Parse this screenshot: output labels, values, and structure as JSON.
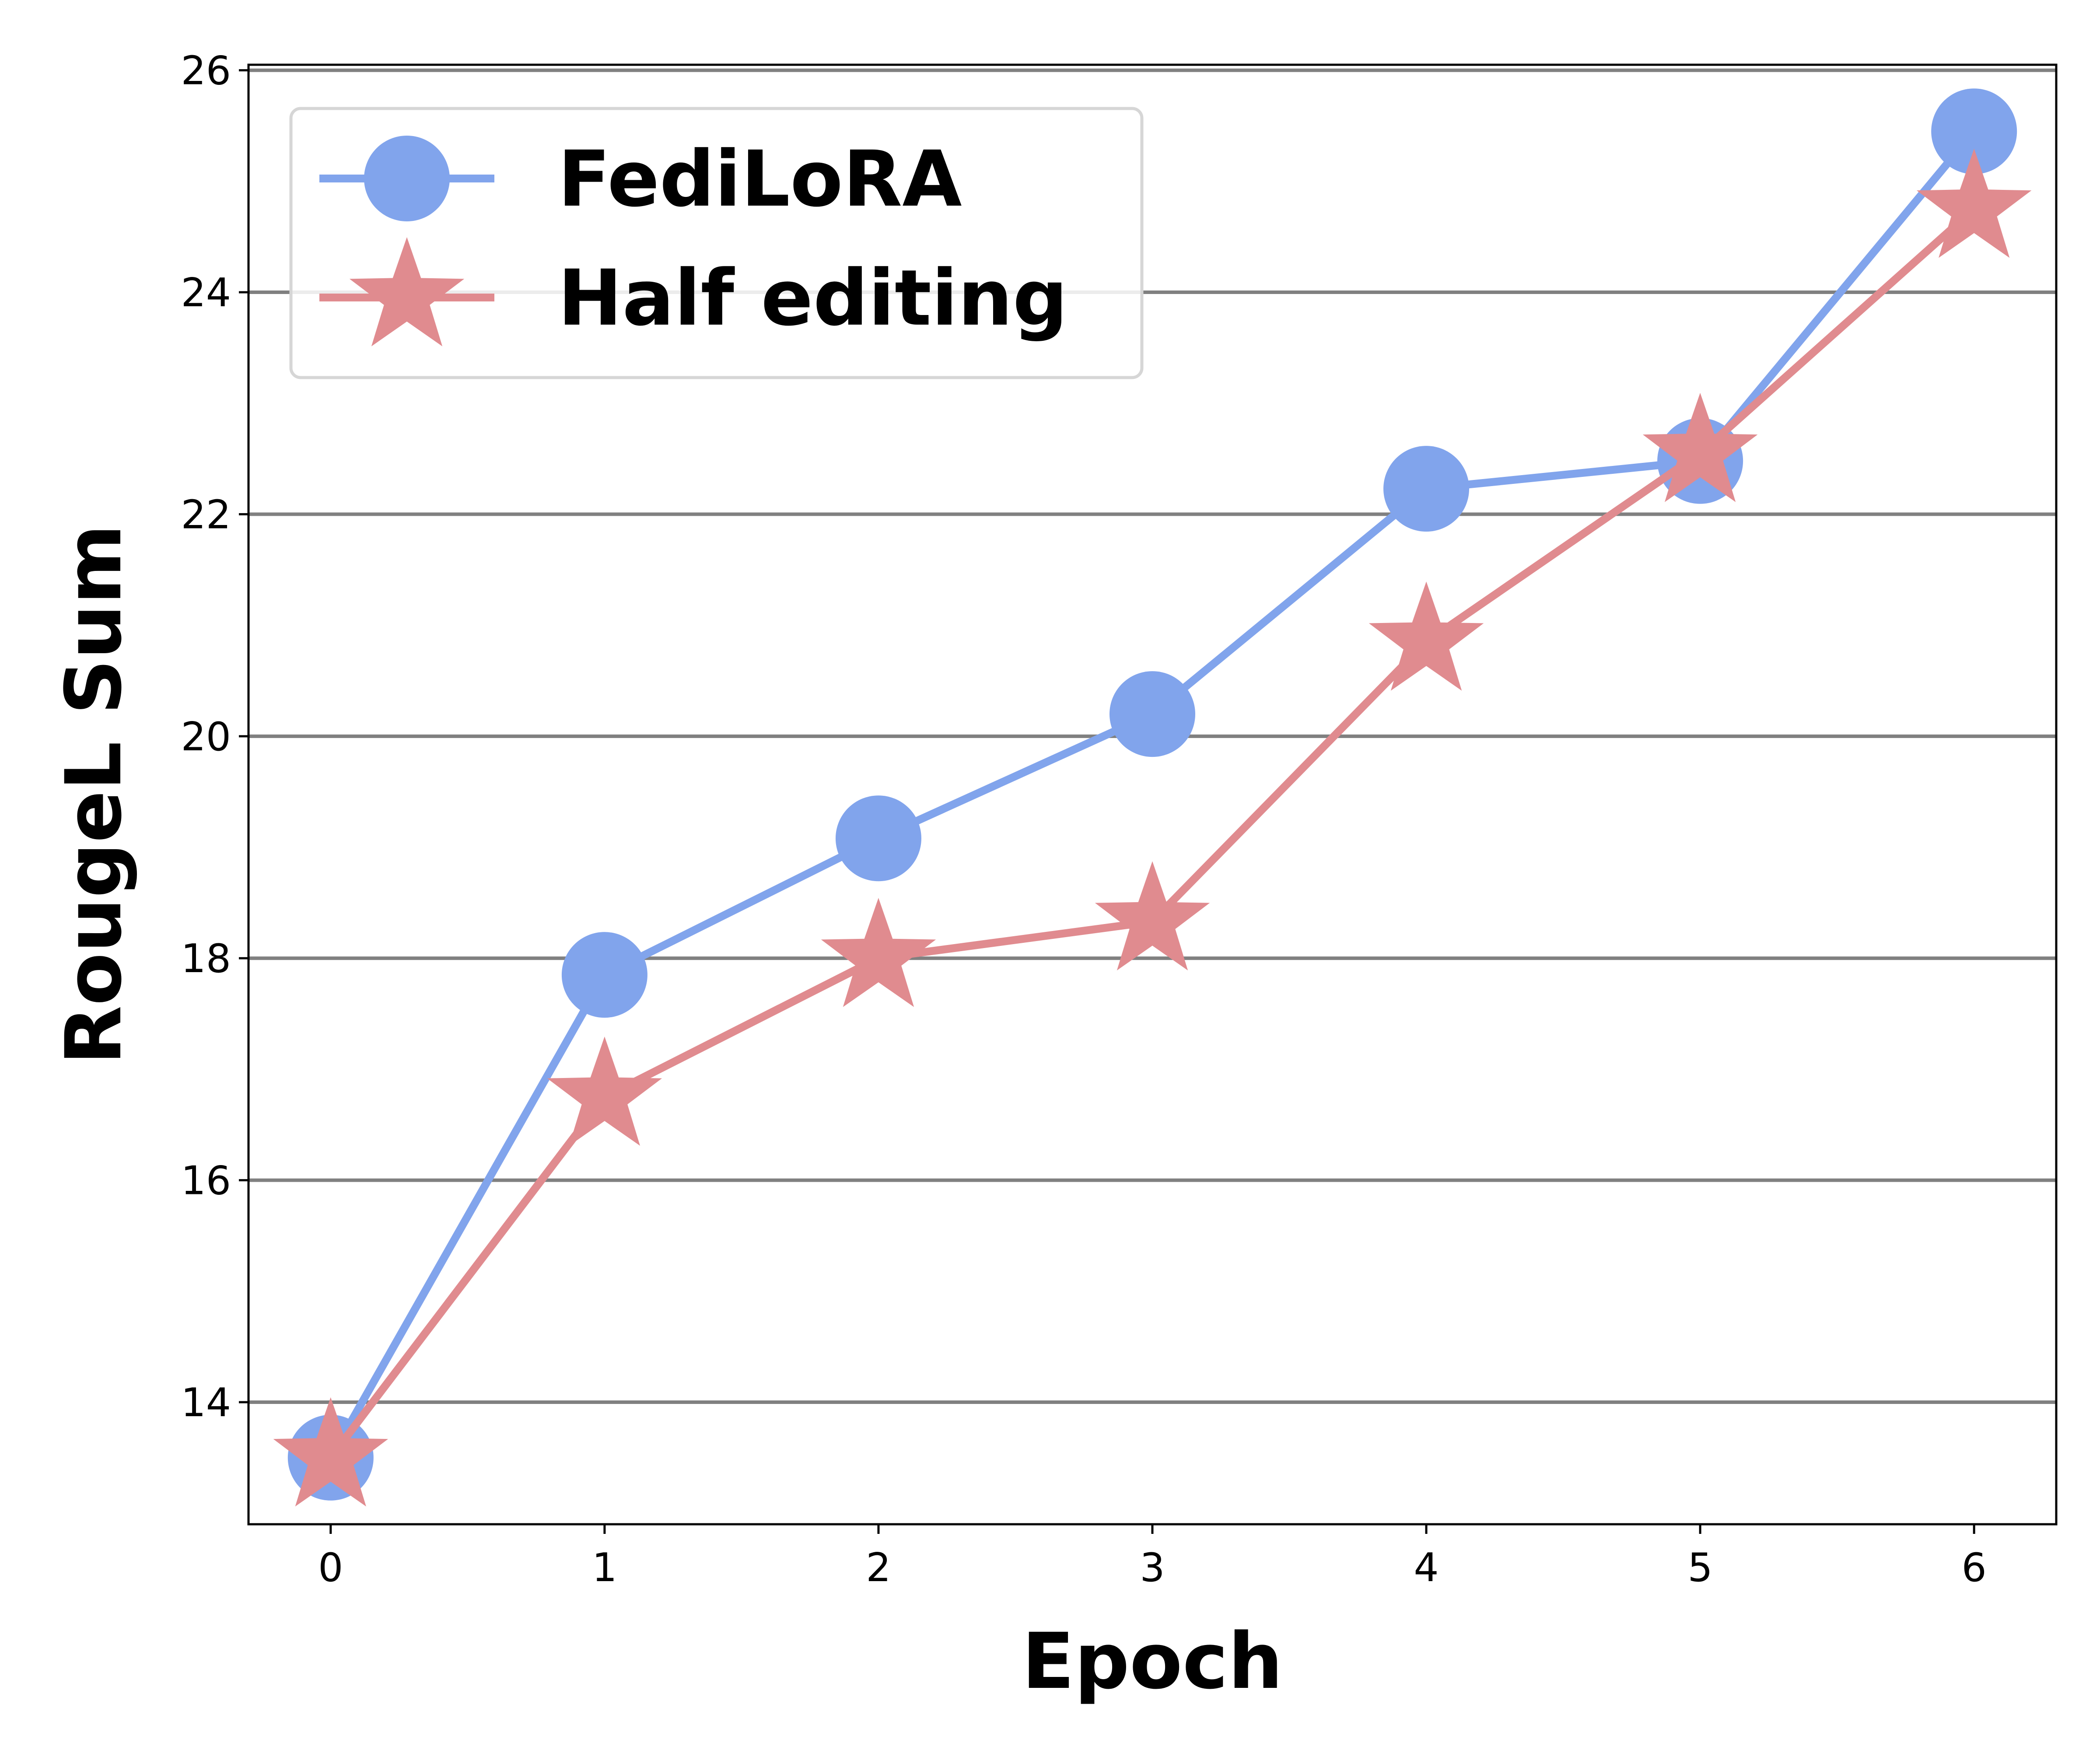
{
  "chart_data": {
    "type": "line",
    "xlabel": "Epoch",
    "ylabel": "RougeL Sum",
    "x": [
      0,
      1,
      2,
      3,
      4,
      5,
      6
    ],
    "xlim": [
      -0.3,
      6.3
    ],
    "ylim": [
      12.9,
      26.05
    ],
    "xticks": [
      "0",
      "1",
      "2",
      "3",
      "4",
      "5",
      "6"
    ],
    "yticks": [
      "14",
      "16",
      "18",
      "20",
      "22",
      "24",
      "26"
    ],
    "grid": "horizontal",
    "legend_position": "top-left",
    "series": [
      {
        "name": "FediLoRA",
        "marker": "circle",
        "color": "#81a4ec",
        "values": [
          13.5,
          17.85,
          19.08,
          20.2,
          22.23,
          22.48,
          25.45
        ]
      },
      {
        "name": "Half editing",
        "marker": "star",
        "color": "#e08b8f",
        "values": [
          13.5,
          16.75,
          18.0,
          18.33,
          20.85,
          22.55,
          24.75
        ]
      }
    ]
  }
}
